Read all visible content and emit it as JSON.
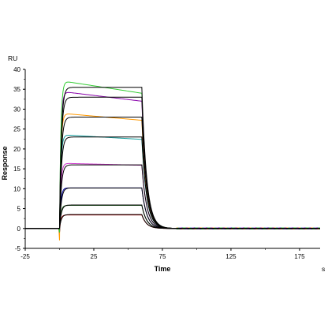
{
  "chart_data": {
    "type": "line",
    "xlabel": "Time",
    "ylabel": "Response",
    "x_unit": "s",
    "y_unit": "RU",
    "xlim": [
      -25,
      190
    ],
    "ylim": [
      -5,
      40
    ],
    "x_ticks": [
      -25,
      25,
      75,
      125,
      175
    ],
    "y_ticks": [
      -5,
      0,
      5,
      10,
      15,
      20,
      25,
      30,
      35,
      40
    ],
    "grid": false,
    "legend": "none",
    "injection_start": 0,
    "injection_end": 60,
    "association_rate": 0.13,
    "dissociation_rate": 0.15,
    "fit_color": "#000000",
    "series": [
      {
        "color": "#c00000",
        "plateau": 3.4,
        "fit_plateau": 3.5,
        "drift": 0.0
      },
      {
        "color": "#2c6e2c",
        "plateau": 5.8,
        "fit_plateau": 5.9,
        "drift": 0.0
      },
      {
        "color": "#0000aa",
        "plateau": 10.2,
        "fit_plateau": 10.2,
        "drift": 0.0
      },
      {
        "color": "#cc33cc",
        "plateau": 16.4,
        "fit_plateau": 16.0,
        "drift": -0.5
      },
      {
        "color": "#16a0a0",
        "plateau": 23.6,
        "fit_plateau": 23.0,
        "drift": -1.2
      },
      {
        "color": "#ff9900",
        "plateau": 29.0,
        "fit_plateau": 28.0,
        "drift": -1.8
      },
      {
        "color": "#8800aa",
        "plateau": 34.5,
        "fit_plateau": 33.0,
        "drift": -2.5
      },
      {
        "color": "#33cc33",
        "plateau": 37.2,
        "fit_plateau": 35.5,
        "drift": -3.2
      }
    ]
  }
}
